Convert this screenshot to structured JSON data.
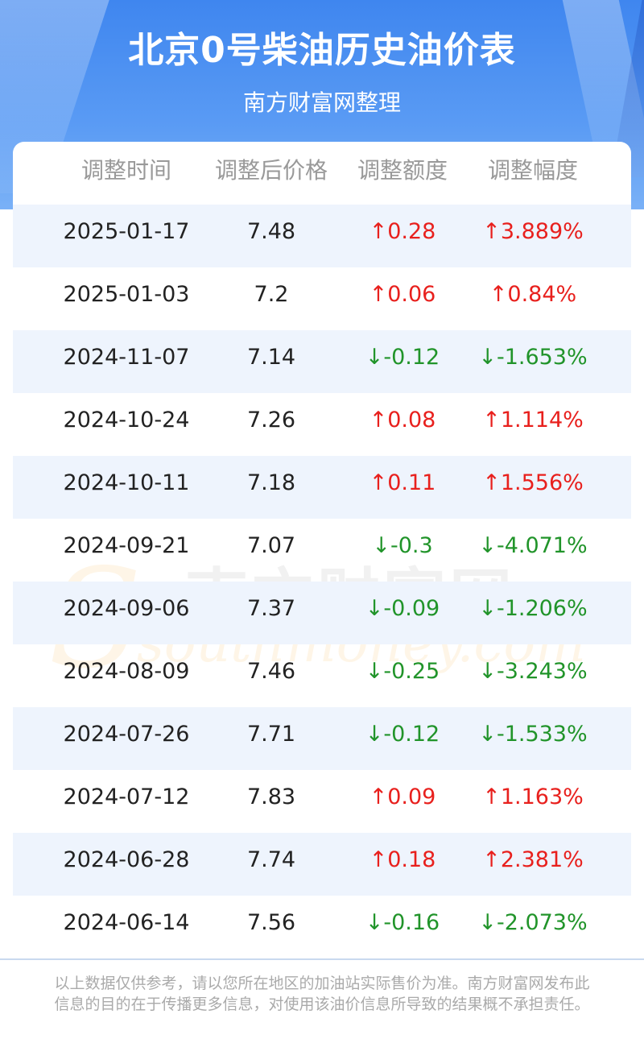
{
  "header": {
    "title": "北京0号柴油历史油价表",
    "subtitle": "南方财富网整理"
  },
  "columns": [
    "调整时间",
    "调整后价格",
    "调整额度",
    "调整幅度"
  ],
  "rows": [
    {
      "date": "2025-01-17",
      "price": "7.48",
      "change": "↑0.28",
      "pct": "↑3.889%",
      "dir": "up"
    },
    {
      "date": "2025-01-03",
      "price": "7.2",
      "change": "↑0.06",
      "pct": "↑0.84%",
      "dir": "up"
    },
    {
      "date": "2024-11-07",
      "price": "7.14",
      "change": "↓-0.12",
      "pct": "↓-1.653%",
      "dir": "down"
    },
    {
      "date": "2024-10-24",
      "price": "7.26",
      "change": "↑0.08",
      "pct": "↑1.114%",
      "dir": "up"
    },
    {
      "date": "2024-10-11",
      "price": "7.18",
      "change": "↑0.11",
      "pct": "↑1.556%",
      "dir": "up"
    },
    {
      "date": "2024-09-21",
      "price": "7.07",
      "change": "↓-0.3",
      "pct": "↓-4.071%",
      "dir": "down"
    },
    {
      "date": "2024-09-06",
      "price": "7.37",
      "change": "↓-0.09",
      "pct": "↓-1.206%",
      "dir": "down"
    },
    {
      "date": "2024-08-09",
      "price": "7.46",
      "change": "↓-0.25",
      "pct": "↓-3.243%",
      "dir": "down"
    },
    {
      "date": "2024-07-26",
      "price": "7.71",
      "change": "↓-0.12",
      "pct": "↓-1.533%",
      "dir": "down"
    },
    {
      "date": "2024-07-12",
      "price": "7.83",
      "change": "↑0.09",
      "pct": "↑1.163%",
      "dir": "up"
    },
    {
      "date": "2024-06-28",
      "price": "7.74",
      "change": "↑0.18",
      "pct": "↑2.381%",
      "dir": "up"
    },
    {
      "date": "2024-06-14",
      "price": "7.56",
      "change": "↓-0.16",
      "pct": "↓-2.073%",
      "dir": "down"
    }
  ],
  "watermark": {
    "cn": "南方财富网",
    "en": "southmoney.com"
  },
  "footer": {
    "disclaimer": "以上数据仅供参考，请以您所在地区的加油站实际售价为准。南方财富网发布此信息的目的在于传播更多信息，对使用该油价信息所导致的结果概不承担责任。"
  },
  "colors": {
    "header_blue": "#3f86ef",
    "row_shade": "#eef4fd",
    "up": "#e8201d",
    "down": "#21942a"
  }
}
